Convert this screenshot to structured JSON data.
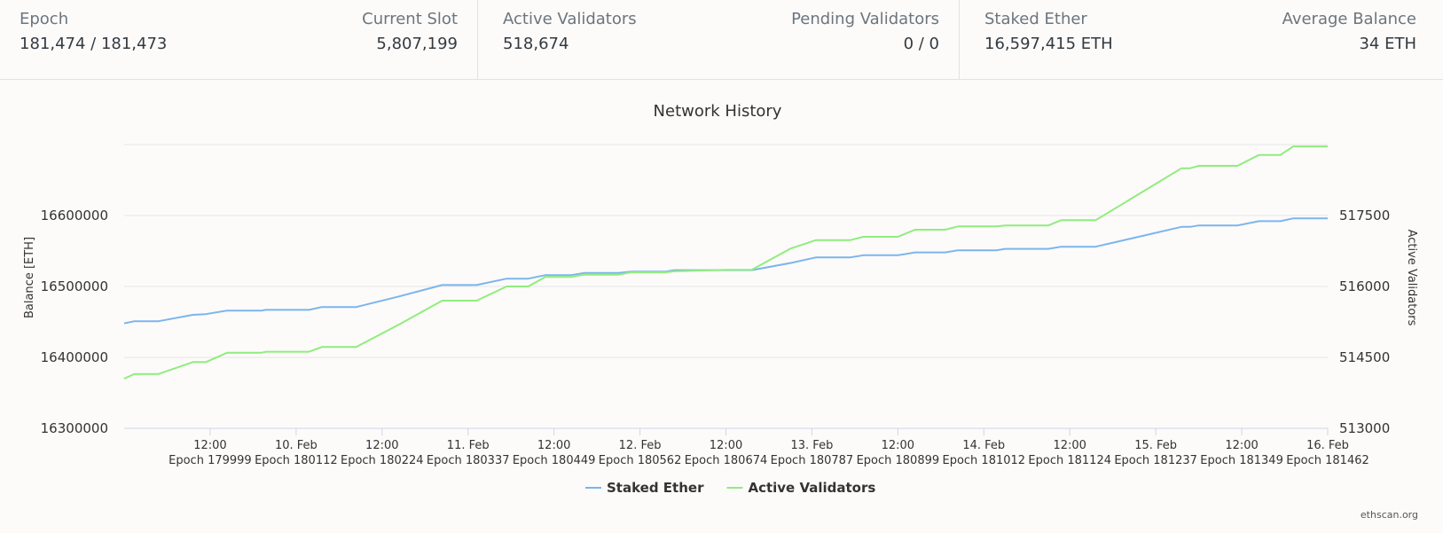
{
  "stats": {
    "epoch": {
      "label": "Epoch",
      "value": "181,474 / 181,473"
    },
    "current_slot": {
      "label": "Current Slot",
      "value": "5,807,199"
    },
    "active_validators": {
      "label": "Active Validators",
      "value": "518,674"
    },
    "pending_validators": {
      "label": "Pending Validators",
      "value": "0 / 0"
    },
    "staked_ether": {
      "label": "Staked Ether",
      "value": "16,597,415 ETH"
    },
    "average_balance": {
      "label": "Average Balance",
      "value": "34 ETH"
    }
  },
  "credits": "ethscan.org",
  "colors": {
    "staked": "#7cb5ec",
    "validators": "#90ed7d",
    "grid": "#e6e6e6",
    "axis": "#ccd6eb"
  },
  "chart_data": {
    "type": "line",
    "title": "Network History",
    "ylabel_left": "Balance [ETH]",
    "ylabel_right": "Active Validators",
    "left_ticks": [
      "16300000",
      "16400000",
      "16500000",
      "16600000"
    ],
    "right_ticks": [
      "513000",
      "514500",
      "516000",
      "517500"
    ],
    "ylim_left": [
      16300000,
      16700000
    ],
    "ylim_right": [
      513000,
      519000
    ],
    "x_range": [
      0,
      14
    ],
    "x_ticks": [
      {
        "x": 1,
        "top": "12:00",
        "bottom": "Epoch 179999"
      },
      {
        "x": 2,
        "top": "10. Feb",
        "bottom": "Epoch 180112"
      },
      {
        "x": 3,
        "top": "12:00",
        "bottom": "Epoch 180224"
      },
      {
        "x": 4,
        "top": "11. Feb",
        "bottom": "Epoch 180337"
      },
      {
        "x": 5,
        "top": "12:00",
        "bottom": "Epoch 180449"
      },
      {
        "x": 6,
        "top": "12. Feb",
        "bottom": "Epoch 180562"
      },
      {
        "x": 7,
        "top": "12:00",
        "bottom": "Epoch 180674"
      },
      {
        "x": 8,
        "top": "13. Feb",
        "bottom": "Epoch 180787"
      },
      {
        "x": 9,
        "top": "12:00",
        "bottom": "Epoch 180899"
      },
      {
        "x": 10,
        "top": "14. Feb",
        "bottom": "Epoch 181012"
      },
      {
        "x": 11,
        "top": "12:00",
        "bottom": "Epoch 181124"
      },
      {
        "x": 12,
        "top": "15. Feb",
        "bottom": "Epoch 181237"
      },
      {
        "x": 13,
        "top": "12:00",
        "bottom": "Epoch 181349"
      },
      {
        "x": 14,
        "top": "16. Feb",
        "bottom": "Epoch 181462"
      }
    ],
    "series": [
      {
        "name": "Staked Ether",
        "axis": "left",
        "color": "#7cb5ec",
        "points": [
          [
            0,
            16448000
          ],
          [
            0.12,
            16451000
          ],
          [
            0.4,
            16451000
          ],
          [
            0.8,
            16460000
          ],
          [
            0.95,
            16461000
          ],
          [
            1.2,
            16466000
          ],
          [
            1.6,
            16466000
          ],
          [
            1.65,
            16467000
          ],
          [
            2.15,
            16467000
          ],
          [
            2.3,
            16471000
          ],
          [
            2.7,
            16471000
          ],
          [
            3.2,
            16486000
          ],
          [
            3.7,
            16502000
          ],
          [
            4.1,
            16502000
          ],
          [
            4.45,
            16511000
          ],
          [
            4.7,
            16511000
          ],
          [
            4.9,
            16516000
          ],
          [
            5.2,
            16516000
          ],
          [
            5.35,
            16519000
          ],
          [
            5.75,
            16519000
          ],
          [
            5.9,
            16521000
          ],
          [
            6.3,
            16521000
          ],
          [
            6.4,
            16523000
          ],
          [
            7.0,
            16523000
          ],
          [
            7.3,
            16523000
          ],
          [
            7.75,
            16533000
          ],
          [
            8.05,
            16541000
          ],
          [
            8.45,
            16541000
          ],
          [
            8.6,
            16544000
          ],
          [
            9.0,
            16544000
          ],
          [
            9.2,
            16548000
          ],
          [
            9.55,
            16548000
          ],
          [
            9.7,
            16551000
          ],
          [
            10.15,
            16551000
          ],
          [
            10.25,
            16553000
          ],
          [
            10.75,
            16553000
          ],
          [
            10.9,
            16556000
          ],
          [
            11.3,
            16556000
          ],
          [
            11.8,
            16570000
          ],
          [
            12.3,
            16584000
          ],
          [
            12.4,
            16584000
          ],
          [
            12.5,
            16586000
          ],
          [
            12.95,
            16586000
          ],
          [
            13.2,
            16592000
          ],
          [
            13.45,
            16592000
          ],
          [
            13.6,
            16596000
          ],
          [
            14,
            16596000
          ]
        ]
      },
      {
        "name": "Active Validators",
        "axis": "right",
        "color": "#90ed7d",
        "points": [
          [
            0,
            514050
          ],
          [
            0.12,
            514150
          ],
          [
            0.4,
            514150
          ],
          [
            0.8,
            514400
          ],
          [
            0.95,
            514400
          ],
          [
            1.2,
            514600
          ],
          [
            1.6,
            514600
          ],
          [
            1.65,
            514620
          ],
          [
            2.15,
            514620
          ],
          [
            2.3,
            514720
          ],
          [
            2.7,
            514720
          ],
          [
            3.2,
            515200
          ],
          [
            3.7,
            515700
          ],
          [
            4.1,
            515700
          ],
          [
            4.45,
            516000
          ],
          [
            4.7,
            516000
          ],
          [
            4.9,
            516200
          ],
          [
            5.2,
            516200
          ],
          [
            5.35,
            516250
          ],
          [
            5.75,
            516250
          ],
          [
            5.9,
            516300
          ],
          [
            6.3,
            516300
          ],
          [
            6.4,
            516320
          ],
          [
            7.0,
            516350
          ],
          [
            7.3,
            516350
          ],
          [
            7.75,
            516800
          ],
          [
            8.05,
            516980
          ],
          [
            8.45,
            516980
          ],
          [
            8.6,
            517050
          ],
          [
            9.0,
            517050
          ],
          [
            9.2,
            517200
          ],
          [
            9.55,
            517200
          ],
          [
            9.7,
            517270
          ],
          [
            10.15,
            517270
          ],
          [
            10.25,
            517290
          ],
          [
            10.75,
            517290
          ],
          [
            10.9,
            517400
          ],
          [
            11.3,
            517400
          ],
          [
            11.8,
            517950
          ],
          [
            12.3,
            518500
          ],
          [
            12.4,
            518500
          ],
          [
            12.5,
            518550
          ],
          [
            12.95,
            518550
          ],
          [
            13.2,
            518780
          ],
          [
            13.45,
            518780
          ],
          [
            13.6,
            518960
          ],
          [
            14,
            518960
          ]
        ]
      }
    ],
    "legend": [
      "Staked Ether",
      "Active Validators"
    ]
  }
}
